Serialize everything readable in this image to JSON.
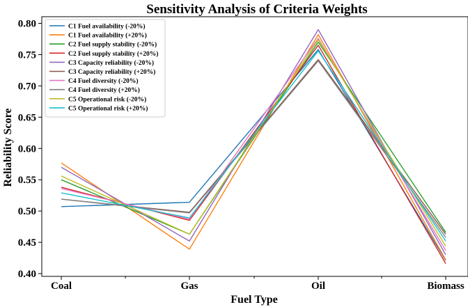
{
  "chart_data": {
    "type": "line",
    "title": "Sensitivity Analysis of Criteria Weights",
    "xlabel": "Fuel Type",
    "ylabel": "Reliability Score",
    "categories": [
      "Coal",
      "Gas",
      "Oil",
      "Biomass"
    ],
    "ylim": [
      0.4,
      0.8
    ],
    "yticks": [
      "0.40",
      "0.45",
      "0.50",
      "0.55",
      "0.60",
      "0.65",
      "0.70",
      "0.75",
      "0.80"
    ],
    "grid": false,
    "legend_position": "top-left",
    "series": [
      {
        "name": "C1 Fuel availability (-20%)",
        "color": "#1f77b4",
        "values": [
          0.507,
          0.514,
          0.758,
          0.421
        ]
      },
      {
        "name": "C1 Fuel availability (+20%)",
        "color": "#ff7f0e",
        "values": [
          0.577,
          0.439,
          0.782,
          0.422
        ]
      },
      {
        "name": "C2 Fuel supply stability (-20%)",
        "color": "#2ca02c",
        "values": [
          0.55,
          0.463,
          0.77,
          0.466
        ]
      },
      {
        "name": "C2 Fuel supply stability (+20%)",
        "color": "#d62728",
        "values": [
          0.538,
          0.485,
          0.765,
          0.416
        ]
      },
      {
        "name": "C3 Capacity reliability (-20%)",
        "color": "#9467bd",
        "values": [
          0.57,
          0.452,
          0.79,
          0.43
        ]
      },
      {
        "name": "C3 Capacity reliability (+20%)",
        "color": "#8c564b",
        "values": [
          0.519,
          0.498,
          0.742,
          0.463
        ]
      },
      {
        "name": "C4 Fuel diversity (-20%)",
        "color": "#e377c2",
        "values": [
          0.536,
          0.487,
          0.776,
          0.437
        ]
      },
      {
        "name": "C4 Fuel diversity (+20%)",
        "color": "#7f7f7f",
        "values": [
          0.519,
          0.497,
          0.74,
          0.458
        ]
      },
      {
        "name": "C5 Operational risk (-20%)",
        "color": "#bcbd22",
        "values": [
          0.556,
          0.463,
          0.774,
          0.444
        ]
      },
      {
        "name": "C5 Operational risk (+20%)",
        "color": "#17becf",
        "values": [
          0.529,
          0.489,
          0.756,
          0.452
        ]
      }
    ]
  }
}
